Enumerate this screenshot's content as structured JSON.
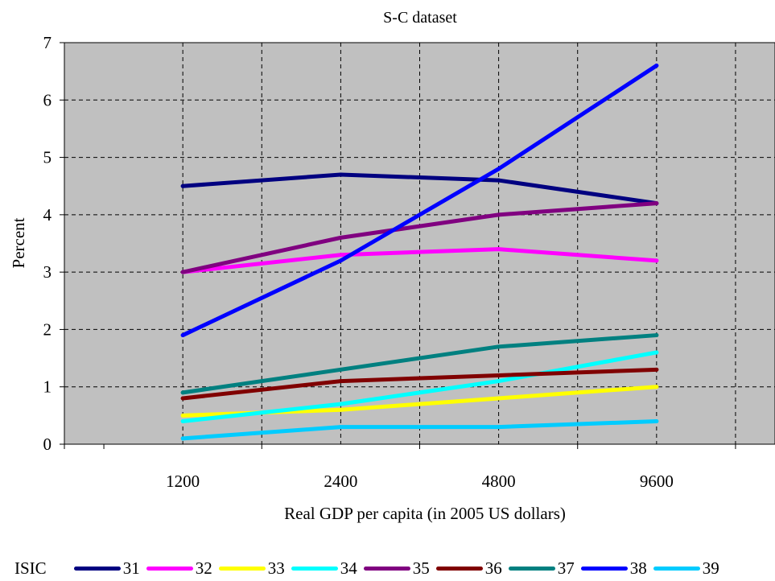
{
  "chart_data": {
    "type": "line",
    "title": "S-C dataset",
    "xlabel": "Real GDP per capita (in 2005 US dollars)",
    "ylabel": "Percent",
    "categories": [
      "1200",
      "2400",
      "4800",
      "9600"
    ],
    "ylim": [
      0,
      7
    ],
    "yticks": [
      "0",
      "1",
      "2",
      "3",
      "4",
      "5",
      "6",
      "7"
    ],
    "grid": true,
    "legend_position": "bottom",
    "legend_title": "ISIC",
    "background_color": "#c0c0c0",
    "series": [
      {
        "name": "31",
        "color": "#000080",
        "values": [
          4.5,
          4.7,
          4.6,
          4.2
        ]
      },
      {
        "name": "32",
        "color": "#ff00ff",
        "values": [
          3.0,
          3.3,
          3.4,
          3.2
        ]
      },
      {
        "name": "33",
        "color": "#ffff00",
        "values": [
          0.5,
          0.6,
          0.8,
          1.0
        ]
      },
      {
        "name": "34",
        "color": "#00ffff",
        "values": [
          0.4,
          0.7,
          1.1,
          1.6
        ]
      },
      {
        "name": "35",
        "color": "#800080",
        "values": [
          3.0,
          3.6,
          4.0,
          4.2
        ]
      },
      {
        "name": "36",
        "color": "#800000",
        "values": [
          0.8,
          1.1,
          1.2,
          1.3
        ]
      },
      {
        "name": "37",
        "color": "#008080",
        "values": [
          0.9,
          1.3,
          1.7,
          1.9
        ]
      },
      {
        "name": "38",
        "color": "#0000ff",
        "values": [
          1.9,
          3.2,
          4.8,
          6.6
        ]
      },
      {
        "name": "39",
        "color": "#00ccff",
        "values": [
          0.1,
          0.3,
          0.3,
          0.4
        ]
      }
    ]
  }
}
